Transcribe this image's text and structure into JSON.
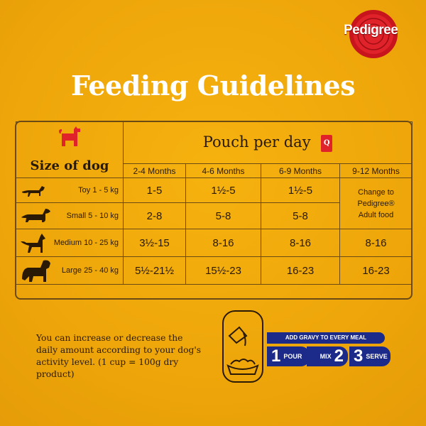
{
  "brand": {
    "logo_text": "Pedigree",
    "logo_color": "#d4141c"
  },
  "title": "Feeding Guidelines",
  "table": {
    "size_header": "Size of dog",
    "pouch_header": "Pouch per day",
    "pouch_icon_letter": "Q",
    "months": [
      "2-4 Months",
      "4-6 Months",
      "6-9 Months",
      "9-12 Months"
    ],
    "rows": [
      {
        "label": "Toy 1 - 5 kg",
        "values": [
          "1-5",
          "1½-5",
          "1½-5"
        ]
      },
      {
        "label": "Small 5 - 10 kg",
        "values": [
          "2-8",
          "5-8",
          "5-8"
        ]
      },
      {
        "label": "Medium 10 - 25 kg",
        "values": [
          "3½-15",
          "8-16",
          "8-16",
          "8-16"
        ]
      },
      {
        "label": "Large 25 - 40 kg",
        "values": [
          "5½-21½",
          "15½-23",
          "16-23",
          "16-23"
        ]
      }
    ],
    "adult_note": [
      "Change to",
      "Pedigree®",
      "Adult food"
    ]
  },
  "note": "You can increase or decrease the daily amount according to your dog's activity level. (1 cup = 100g dry product)",
  "steps": {
    "header": "ADD GRAVY TO EVERY MEAL",
    "items": [
      {
        "num": "1",
        "label": "POUR"
      },
      {
        "num": "2",
        "label": "MIX"
      },
      {
        "num": "3",
        "label": "SERVE"
      }
    ],
    "color": "#1c2a8a"
  }
}
